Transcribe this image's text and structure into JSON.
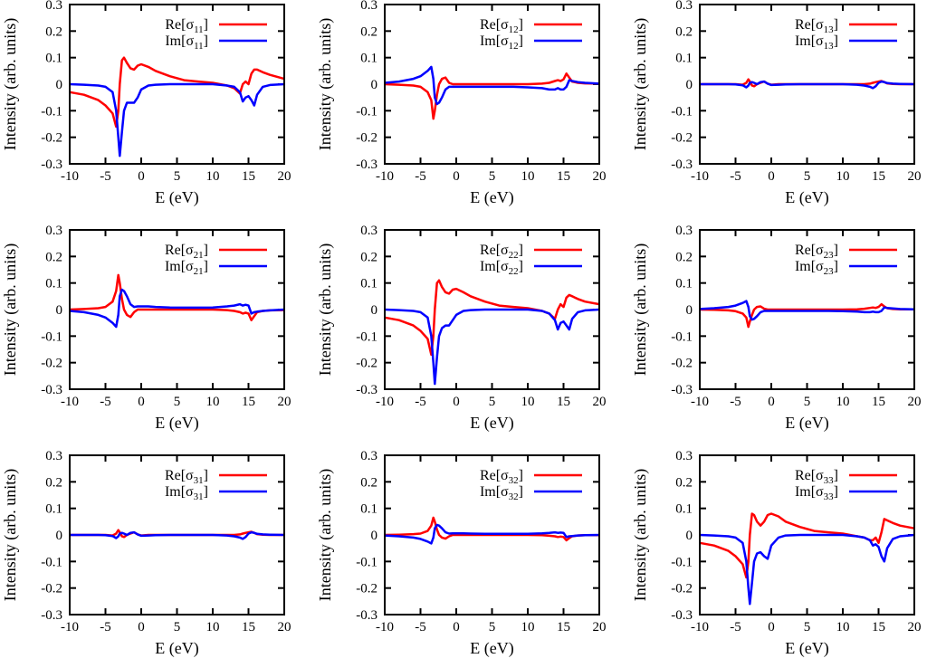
{
  "chart_data": {
    "type": "line",
    "grid_layout": "3x3",
    "xlabel": "E (eV)",
    "ylabel": "Intensity (arb. units)",
    "xlim": [
      -10,
      20
    ],
    "ylim": [
      -0.3,
      0.3
    ],
    "xticks": [
      -10,
      -5,
      0,
      5,
      10,
      15,
      20
    ],
    "yticks": [
      -0.3,
      -0.2,
      -0.1,
      0,
      0.1,
      0.2,
      0.3
    ],
    "grid": false,
    "legend_placement": "top-right",
    "series_colors": {
      "Re": "#ff0000",
      "Im": "#0000ff"
    },
    "x": [
      -10,
      -8,
      -6,
      -5,
      -4,
      -3.5,
      -3.2,
      -3,
      -2.7,
      -2.4,
      -2,
      -1.5,
      -1,
      -0.5,
      0,
      1,
      2,
      4,
      6,
      8,
      10,
      12,
      13,
      13.8,
      14.2,
      14.6,
      15,
      15.4,
      15.8,
      16.2,
      17,
      18,
      20
    ],
    "panels": [
      {
        "series": [
          {
            "name": "Re[σ11]",
            "values": [
              -0.03,
              -0.04,
              -0.06,
              -0.08,
              -0.11,
              -0.16,
              -0.1,
              0.0,
              0.09,
              0.1,
              0.08,
              0.06,
              0.055,
              0.07,
              0.075,
              0.065,
              0.05,
              0.03,
              0.015,
              0.01,
              0.005,
              -0.005,
              -0.015,
              -0.035,
              0.0,
              0.01,
              0.0,
              0.04,
              0.055,
              0.055,
              0.045,
              0.035,
              0.02
            ]
          },
          {
            "name": "Im[σ11]",
            "values": [
              0,
              -0.002,
              -0.005,
              -0.01,
              -0.03,
              -0.1,
              -0.2,
              -0.27,
              -0.18,
              -0.1,
              -0.07,
              -0.07,
              -0.07,
              -0.05,
              -0.02,
              -0.005,
              -0.002,
              0,
              0,
              0,
              0,
              -0.005,
              -0.01,
              -0.03,
              -0.065,
              -0.05,
              -0.045,
              -0.06,
              -0.08,
              -0.04,
              -0.01,
              -0.003,
              0
            ]
          }
        ]
      },
      {
        "series": [
          {
            "name": "Re[σ12]",
            "values": [
              0,
              -0.002,
              -0.005,
              -0.01,
              -0.03,
              -0.06,
              -0.13,
              -0.1,
              -0.04,
              0.0,
              0.02,
              0.025,
              0.005,
              0,
              0,
              0,
              0,
              0,
              0,
              0,
              0,
              0.002,
              0.005,
              0.012,
              0.015,
              0.012,
              0.018,
              0.04,
              0.025,
              0.01,
              0.005,
              0.003,
              0.002
            ]
          },
          {
            "name": "Im[σ12]",
            "values": [
              0.005,
              0.01,
              0.02,
              0.03,
              0.05,
              0.065,
              0.02,
              -0.05,
              -0.075,
              -0.07,
              -0.05,
              -0.02,
              -0.01,
              -0.01,
              -0.01,
              -0.01,
              -0.01,
              -0.01,
              -0.01,
              -0.01,
              -0.012,
              -0.015,
              -0.02,
              -0.02,
              -0.015,
              -0.02,
              -0.02,
              -0.01,
              0.015,
              0.012,
              0.008,
              0.005,
              0.002
            ]
          }
        ]
      },
      {
        "series": [
          {
            "name": "Re[σ13]",
            "values": [
              0,
              0,
              0,
              0,
              -0.002,
              0.005,
              0.018,
              0.01,
              -0.005,
              -0.008,
              0,
              0.005,
              0.01,
              0.002,
              -0.002,
              0,
              0,
              0,
              0,
              0,
              0,
              0,
              0,
              0.002,
              0.005,
              0.008,
              0.01,
              0.012,
              0.008,
              0.003,
              0.001,
              0,
              0
            ]
          },
          {
            "name": "Im[σ13]",
            "values": [
              0,
              0,
              0,
              -0.001,
              -0.004,
              -0.012,
              -0.005,
              0.005,
              0.008,
              0.005,
              0.0,
              0.008,
              0.01,
              0.002,
              -0.003,
              -0.002,
              -0.001,
              0,
              0,
              0,
              0,
              -0.002,
              -0.005,
              -0.01,
              -0.015,
              -0.008,
              0.005,
              0.01,
              0.008,
              0.004,
              0.002,
              0.001,
              0
            ]
          }
        ]
      },
      {
        "series": [
          {
            "name": "Re[σ21]",
            "values": [
              0,
              0.002,
              0.005,
              0.01,
              0.03,
              0.07,
              0.13,
              0.1,
              0.04,
              0.0,
              -0.02,
              -0.028,
              -0.01,
              0,
              0,
              0,
              0,
              0,
              0,
              0,
              0,
              -0.002,
              -0.005,
              -0.01,
              -0.015,
              -0.012,
              -0.015,
              -0.04,
              -0.025,
              -0.01,
              -0.005,
              -0.003,
              -0.002
            ]
          },
          {
            "name": "Im[σ21]",
            "values": [
              -0.005,
              -0.01,
              -0.02,
              -0.03,
              -0.05,
              -0.065,
              -0.02,
              0.05,
              0.075,
              0.07,
              0.05,
              0.02,
              0.01,
              0.012,
              0.012,
              0.012,
              0.01,
              0.008,
              0.007,
              0.007,
              0.008,
              0.012,
              0.015,
              0.02,
              0.015,
              0.018,
              0.015,
              -0.015,
              -0.01,
              -0.008,
              -0.005,
              -0.003,
              0
            ]
          }
        ]
      },
      {
        "series": [
          {
            "name": "Re[σ22]",
            "values": [
              -0.03,
              -0.04,
              -0.06,
              -0.08,
              -0.11,
              -0.17,
              -0.1,
              0.0,
              0.1,
              0.11,
              0.085,
              0.065,
              0.06,
              0.075,
              0.078,
              0.065,
              0.05,
              0.03,
              0.015,
              0.01,
              0.005,
              -0.005,
              -0.015,
              -0.035,
              0.0,
              0.02,
              0.01,
              0.045,
              0.055,
              0.05,
              0.04,
              0.03,
              0.02
            ]
          },
          {
            "name": "Im[σ22]",
            "values": [
              0,
              -0.002,
              -0.005,
              -0.01,
              -0.03,
              -0.1,
              -0.2,
              -0.28,
              -0.18,
              -0.1,
              -0.07,
              -0.06,
              -0.06,
              -0.04,
              -0.02,
              -0.005,
              -0.002,
              0,
              0,
              0,
              0,
              -0.005,
              -0.015,
              -0.04,
              -0.075,
              -0.05,
              -0.045,
              -0.06,
              -0.075,
              -0.035,
              -0.01,
              -0.003,
              0
            ]
          }
        ]
      },
      {
        "series": [
          {
            "name": "Re[σ23]",
            "values": [
              0,
              -0.001,
              -0.003,
              -0.006,
              -0.015,
              -0.03,
              -0.065,
              -0.045,
              -0.02,
              0.0,
              0.01,
              0.012,
              0.003,
              0,
              0,
              0,
              0,
              0,
              0,
              0,
              0,
              0.001,
              0.003,
              0.006,
              0.008,
              0.006,
              0.01,
              0.02,
              0.012,
              0.005,
              0.002,
              0.001,
              0.001
            ]
          },
          {
            "name": "Im[σ23]",
            "values": [
              0.002,
              0.005,
              0.01,
              0.015,
              0.025,
              0.032,
              0.01,
              -0.025,
              -0.038,
              -0.035,
              -0.025,
              -0.01,
              -0.005,
              -0.005,
              -0.005,
              -0.005,
              -0.005,
              -0.005,
              -0.005,
              -0.005,
              -0.006,
              -0.008,
              -0.01,
              -0.01,
              -0.008,
              -0.01,
              -0.01,
              -0.005,
              0.008,
              0.006,
              0.004,
              0.002,
              0.001
            ]
          }
        ]
      },
      {
        "series": [
          {
            "name": "Re[σ31]",
            "values": [
              0,
              0,
              0,
              0,
              -0.002,
              0.005,
              0.018,
              0.01,
              -0.005,
              -0.008,
              0,
              0.005,
              0.01,
              0.002,
              -0.002,
              0,
              0,
              0,
              0,
              0,
              0,
              0,
              0,
              0.002,
              0.005,
              0.008,
              0.01,
              0.012,
              0.008,
              0.003,
              0.001,
              0,
              0
            ]
          },
          {
            "name": "Im[σ31]",
            "values": [
              0,
              0,
              0,
              -0.001,
              -0.004,
              -0.012,
              -0.005,
              0.005,
              0.008,
              0.005,
              0.0,
              0.008,
              0.01,
              0.002,
              -0.003,
              -0.002,
              -0.001,
              0,
              0,
              0,
              0,
              -0.002,
              -0.005,
              -0.01,
              -0.015,
              -0.008,
              0.005,
              0.01,
              0.008,
              0.004,
              0.002,
              0.001,
              0
            ]
          }
        ]
      },
      {
        "series": [
          {
            "name": "Re[σ32]",
            "values": [
              0,
              0.001,
              0.003,
              0.005,
              0.015,
              0.035,
              0.065,
              0.05,
              0.02,
              0.0,
              -0.01,
              -0.014,
              -0.005,
              0,
              0,
              0,
              0,
              0,
              0,
              0,
              0,
              -0.001,
              -0.003,
              -0.005,
              -0.008,
              -0.006,
              -0.008,
              -0.02,
              -0.012,
              -0.005,
              -0.002,
              -0.001,
              -0.001
            ]
          },
          {
            "name": "Im[σ32]",
            "values": [
              -0.002,
              -0.005,
              -0.01,
              -0.015,
              -0.025,
              -0.032,
              -0.01,
              0.025,
              0.038,
              0.035,
              0.025,
              0.01,
              0.005,
              0.006,
              0.006,
              0.006,
              0.005,
              0.004,
              0.004,
              0.004,
              0.004,
              0.006,
              0.008,
              0.01,
              0.008,
              0.009,
              0.008,
              -0.008,
              -0.005,
              -0.004,
              -0.002,
              -0.001,
              0
            ]
          }
        ]
      },
      {
        "series": [
          {
            "name": "Re[σ33]",
            "values": [
              -0.03,
              -0.04,
              -0.06,
              -0.08,
              -0.11,
              -0.16,
              -0.1,
              0.0,
              0.08,
              0.075,
              0.05,
              0.035,
              0.05,
              0.075,
              0.08,
              0.07,
              0.05,
              0.03,
              0.015,
              0.01,
              0.005,
              -0.005,
              -0.01,
              -0.02,
              -0.02,
              -0.01,
              -0.03,
              0.01,
              0.06,
              0.055,
              0.045,
              0.035,
              0.025
            ]
          },
          {
            "name": "Im[σ33]",
            "values": [
              0,
              -0.002,
              -0.005,
              -0.01,
              -0.03,
              -0.1,
              -0.2,
              -0.26,
              -0.18,
              -0.1,
              -0.07,
              -0.065,
              -0.08,
              -0.09,
              -0.04,
              -0.01,
              -0.002,
              0,
              0,
              0,
              0,
              -0.005,
              -0.01,
              -0.02,
              -0.04,
              -0.035,
              -0.045,
              -0.08,
              -0.1,
              -0.05,
              -0.015,
              -0.005,
              0
            ]
          }
        ]
      }
    ]
  }
}
